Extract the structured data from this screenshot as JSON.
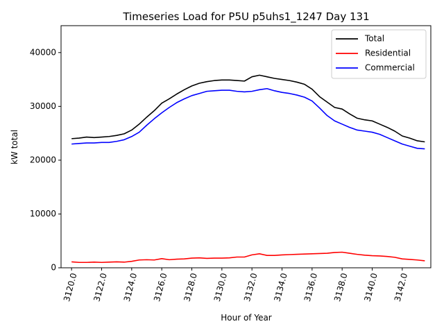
{
  "chart_data": {
    "type": "line",
    "title": "Timeseries Load for P5U p5uhs1_1247  Day 131",
    "xlabel": "Hour of Year",
    "ylabel": "kW total",
    "xlim": [
      3119.3,
      3143.9
    ],
    "ylim": [
      0,
      45000
    ],
    "xticks": [
      3120,
      3122,
      3124,
      3126,
      3128,
      3130,
      3132,
      3134,
      3136,
      3138,
      3140,
      3142
    ],
    "xtick_labels": [
      "3120.0",
      "3122.0",
      "3124.0",
      "3126.0",
      "3128.0",
      "3130.0",
      "3132.0",
      "3134.0",
      "3136.0",
      "3138.0",
      "3140.0",
      "3142.0"
    ],
    "yticks": [
      0,
      10000,
      20000,
      30000,
      40000
    ],
    "ytick_labels": [
      "0",
      "10000",
      "20000",
      "30000",
      "40000"
    ],
    "grid": false,
    "legend_position": "top-right",
    "series": [
      {
        "name": "Total",
        "color": "#000000",
        "x": [
          3120.0,
          3120.5,
          3121.0,
          3121.5,
          3122.0,
          3122.5,
          3123.0,
          3123.5,
          3124.0,
          3124.5,
          3125.0,
          3125.5,
          3126.0,
          3126.5,
          3127.0,
          3127.5,
          3128.0,
          3128.5,
          3129.0,
          3129.5,
          3130.0,
          3130.5,
          3131.0,
          3131.5,
          3132.0,
          3132.5,
          3133.0,
          3133.5,
          3134.0,
          3134.5,
          3135.0,
          3135.5,
          3136.0,
          3136.5,
          3137.0,
          3137.5,
          3138.0,
          3138.5,
          3139.0,
          3139.5,
          3140.0,
          3140.5,
          3141.0,
          3141.5,
          3142.0,
          3142.5,
          3143.0,
          3143.5
        ],
        "values": [
          24000,
          24100,
          24300,
          24200,
          24300,
          24400,
          24600,
          24900,
          25600,
          26700,
          28000,
          29200,
          30600,
          31400,
          32300,
          33100,
          33800,
          34300,
          34600,
          34800,
          34900,
          34900,
          34800,
          34700,
          35500,
          35800,
          35500,
          35200,
          35000,
          34800,
          34500,
          34100,
          33200,
          31800,
          30800,
          29800,
          29500,
          28600,
          27800,
          27500,
          27300,
          26700,
          26100,
          25400,
          24500,
          24100,
          23600,
          23400
        ]
      },
      {
        "name": "Residential",
        "color": "#ff0000",
        "x": [
          3120.0,
          3120.5,
          3121.0,
          3121.5,
          3122.0,
          3122.5,
          3123.0,
          3123.5,
          3124.0,
          3124.5,
          3125.0,
          3125.5,
          3126.0,
          3126.5,
          3127.0,
          3127.5,
          3128.0,
          3128.5,
          3129.0,
          3129.5,
          3130.0,
          3130.5,
          3131.0,
          3131.5,
          3132.0,
          3132.5,
          3133.0,
          3133.5,
          3134.0,
          3134.5,
          3135.0,
          3135.5,
          3136.0,
          3136.5,
          3137.0,
          3137.5,
          3138.0,
          3138.5,
          3139.0,
          3139.5,
          3140.0,
          3140.5,
          3141.0,
          3141.5,
          3142.0,
          3142.5,
          3143.0,
          3143.5
        ],
        "values": [
          1100,
          1000,
          1000,
          1050,
          1000,
          1050,
          1100,
          1050,
          1200,
          1450,
          1500,
          1450,
          1700,
          1500,
          1600,
          1650,
          1800,
          1850,
          1750,
          1800,
          1800,
          1850,
          2000,
          2000,
          2400,
          2600,
          2300,
          2300,
          2400,
          2450,
          2500,
          2550,
          2600,
          2650,
          2700,
          2850,
          2900,
          2700,
          2500,
          2350,
          2250,
          2200,
          2100,
          1950,
          1650,
          1550,
          1450,
          1300
        ]
      },
      {
        "name": "Commercial",
        "color": "#0000ff",
        "x": [
          3120.0,
          3120.5,
          3121.0,
          3121.5,
          3122.0,
          3122.5,
          3123.0,
          3123.5,
          3124.0,
          3124.5,
          3125.0,
          3125.5,
          3126.0,
          3126.5,
          3127.0,
          3127.5,
          3128.0,
          3128.5,
          3129.0,
          3129.5,
          3130.0,
          3130.5,
          3131.0,
          3131.5,
          3132.0,
          3132.5,
          3133.0,
          3133.5,
          3134.0,
          3134.5,
          3135.0,
          3135.5,
          3136.0,
          3136.5,
          3137.0,
          3137.5,
          3138.0,
          3138.5,
          3139.0,
          3139.5,
          3140.0,
          3140.5,
          3141.0,
          3141.5,
          3142.0,
          3142.5,
          3143.0,
          3143.5
        ],
        "values": [
          23000,
          23100,
          23200,
          23200,
          23300,
          23300,
          23500,
          23800,
          24400,
          25200,
          26500,
          27700,
          28800,
          29800,
          30700,
          31400,
          32000,
          32400,
          32800,
          32900,
          33000,
          33000,
          32800,
          32700,
          32800,
          33100,
          33300,
          32900,
          32600,
          32400,
          32100,
          31700,
          31000,
          29700,
          28300,
          27300,
          26700,
          26100,
          25600,
          25400,
          25200,
          24800,
          24200,
          23600,
          23000,
          22600,
          22200,
          22100
        ]
      }
    ]
  }
}
